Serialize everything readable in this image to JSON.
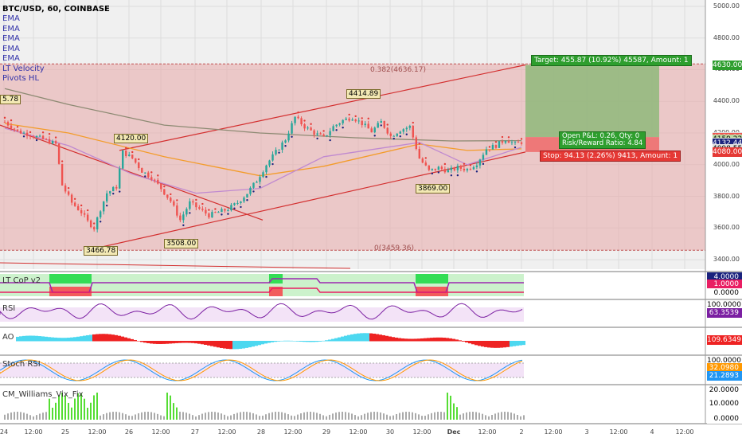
{
  "header": {
    "symbol": "BTC/USD, 60, COINBASE",
    "indicators": [
      "EMA",
      "EMA",
      "EMA",
      "EMA",
      "EMA",
      "LT Velocity",
      "Pivots HL"
    ]
  },
  "chart_data": {
    "type": "candlestick",
    "symbol": "BTC/USD",
    "timeframe": "60",
    "exchange": "COINBASE",
    "price_axis": [
      "5000.00",
      "4800.00",
      "4600.00",
      "4400.00",
      "4200.00",
      "4000.00",
      "3800.00",
      "3600.00",
      "3400.00"
    ],
    "ylim": [
      3340,
      5040
    ],
    "price_tags": [
      {
        "label": "4630.00",
        "value": 4630,
        "color": "#2e9e2e",
        "text_color": "#ffffff"
      },
      {
        "label": "4174.13",
        "value": 4174.13,
        "color": "#e0e0e0",
        "text_color": "#000000"
      },
      {
        "label": "4169.23",
        "value": 4169.23,
        "color": "#ef5350",
        "text_color": "#ffffff"
      },
      {
        "label": "4159.22",
        "value": 4159.22,
        "color": "#bcd8a0",
        "text_color": "#000000"
      },
      {
        "label": "4142.01",
        "value": 4142.01,
        "color": "#e0e0e0",
        "text_color": "#000000"
      },
      {
        "label": "4132.44",
        "value": 4132.44,
        "color": "#1a237e",
        "text_color": "#ffffff"
      },
      {
        "label": "4098.55",
        "value": 4098.55,
        "color": "#e0e0e0",
        "text_color": "#000000"
      },
      {
        "label": "4081.28",
        "value": 4081.28,
        "color": "#ff9800",
        "text_color": "#ffffff"
      },
      {
        "label": "4080.00",
        "value": 4080,
        "color": "#e53935",
        "text_color": "#ffffff"
      }
    ],
    "fib_levels": [
      {
        "label": "0.382(4636.17)",
        "value": 4636.17
      },
      {
        "label": "0(3459.36)",
        "value": 3459.36
      }
    ],
    "pivot_labels": [
      {
        "label": "5.78",
        "value": 4255
      },
      {
        "label": "4120.00",
        "value": 4120
      },
      {
        "label": "4414.89",
        "value": 4414.89
      },
      {
        "label": "3466.78",
        "value": 3466.78
      },
      {
        "label": "3508.00",
        "value": 3508
      },
      {
        "label": "3869.00",
        "value": 3869
      }
    ],
    "position_tool": {
      "target": "Target: 455.87 (10.92%) 45587, Amount: 1",
      "open": "Open P&L: 0.26, Qty: 0",
      "ratio": "Risk/Reward Ratio: 4.84",
      "stop": "Stop: 94.13 (2.26%) 9413, Amount: 1",
      "entry": 4174.13,
      "target_price": 4630,
      "stop_price": 4080
    },
    "x_axis": [
      "24",
      "12:00",
      "25",
      "12:00",
      "26",
      "12:00",
      "27",
      "12:00",
      "28",
      "12:00",
      "29",
      "12:00",
      "30",
      "12:00",
      "Dec",
      "12:00",
      "2",
      "12:00",
      "3",
      "12:00",
      "4",
      "12:00"
    ],
    "anchors": [
      {
        "i": 0,
        "v": 4270
      },
      {
        "i": 4,
        "v": 4210
      },
      {
        "i": 8,
        "v": 4190
      },
      {
        "i": 12,
        "v": 4160
      },
      {
        "i": 16,
        "v": 4130
      },
      {
        "i": 18,
        "v": 3870
      },
      {
        "i": 21,
        "v": 3760
      },
      {
        "i": 24,
        "v": 3700
      },
      {
        "i": 26,
        "v": 3640
      },
      {
        "i": 28,
        "v": 3600
      },
      {
        "i": 30,
        "v": 3720
      },
      {
        "i": 32,
        "v": 3820
      },
      {
        "i": 35,
        "v": 3860
      },
      {
        "i": 37,
        "v": 4080
      },
      {
        "i": 40,
        "v": 4040
      },
      {
        "i": 43,
        "v": 3960
      },
      {
        "i": 46,
        "v": 3920
      },
      {
        "i": 49,
        "v": 3850
      },
      {
        "i": 52,
        "v": 3770
      },
      {
        "i": 55,
        "v": 3650
      },
      {
        "i": 58,
        "v": 3760
      },
      {
        "i": 61,
        "v": 3720
      },
      {
        "i": 64,
        "v": 3680
      },
      {
        "i": 67,
        "v": 3700
      },
      {
        "i": 70,
        "v": 3720
      },
      {
        "i": 73,
        "v": 3760
      },
      {
        "i": 76,
        "v": 3820
      },
      {
        "i": 79,
        "v": 3900
      },
      {
        "i": 82,
        "v": 4000
      },
      {
        "i": 85,
        "v": 4080
      },
      {
        "i": 88,
        "v": 4160
      },
      {
        "i": 91,
        "v": 4300
      },
      {
        "i": 94,
        "v": 4240
      },
      {
        "i": 97,
        "v": 4200
      },
      {
        "i": 100,
        "v": 4170
      },
      {
        "i": 103,
        "v": 4240
      },
      {
        "i": 106,
        "v": 4280
      },
      {
        "i": 109,
        "v": 4300
      },
      {
        "i": 112,
        "v": 4260
      },
      {
        "i": 115,
        "v": 4210
      },
      {
        "i": 118,
        "v": 4270
      },
      {
        "i": 121,
        "v": 4180
      },
      {
        "i": 124,
        "v": 4220
      },
      {
        "i": 127,
        "v": 4240
      },
      {
        "i": 130,
        "v": 4040
      },
      {
        "i": 133,
        "v": 3960
      },
      {
        "i": 136,
        "v": 3980
      },
      {
        "i": 139,
        "v": 3960
      },
      {
        "i": 142,
        "v": 3980
      },
      {
        "i": 145,
        "v": 3970
      },
      {
        "i": 148,
        "v": 4010
      },
      {
        "i": 151,
        "v": 4100
      },
      {
        "i": 154,
        "v": 4120
      },
      {
        "i": 157,
        "v": 4160
      },
      {
        "i": 160,
        "v": 4130
      },
      {
        "i": 162,
        "v": 4142
      }
    ],
    "ema_lines": [
      {
        "name": "EMA",
        "color": "#8d8a73",
        "points": [
          [
            0,
            4480
          ],
          [
            20,
            4380
          ],
          [
            50,
            4250
          ],
          [
            80,
            4200
          ],
          [
            110,
            4170
          ],
          [
            140,
            4150
          ],
          [
            162,
            4152
          ]
        ]
      },
      {
        "name": "EMA",
        "color": "#f39c2a",
        "points": [
          [
            0,
            4260
          ],
          [
            20,
            4200
          ],
          [
            50,
            4050
          ],
          [
            80,
            3930
          ],
          [
            100,
            3990
          ],
          [
            130,
            4130
          ],
          [
            145,
            4090
          ],
          [
            162,
            4100
          ]
        ]
      },
      {
        "name": "EMA",
        "color": "#c08ad0",
        "points": [
          [
            0,
            4230
          ],
          [
            20,
            4120
          ],
          [
            40,
            3940
          ],
          [
            60,
            3820
          ],
          [
            80,
            3850
          ],
          [
            100,
            4050
          ],
          [
            130,
            4140
          ],
          [
            145,
            4000
          ],
          [
            162,
            4110
          ]
        ]
      }
    ],
    "oscillators": {
      "lt_cop": {
        "title": "LT CoP v2",
        "scale": [
          "4.0000",
          "1.0000",
          "0.0000"
        ]
      },
      "rsi": {
        "title": "RSI",
        "scale": [
          "100.0000",
          "63.3539"
        ]
      },
      "ao": {
        "title": "AO",
        "scale": [
          "109.6349"
        ]
      },
      "stoch_rsi": {
        "title": "Stoch RSI",
        "scale": [
          "100.0000",
          "32.0980",
          "21.2893"
        ]
      },
      "vix_fix": {
        "title": "CM_Williams_Vix_Fix",
        "scale": [
          "20.0000",
          "10.0000",
          "0.0000"
        ]
      }
    }
  }
}
